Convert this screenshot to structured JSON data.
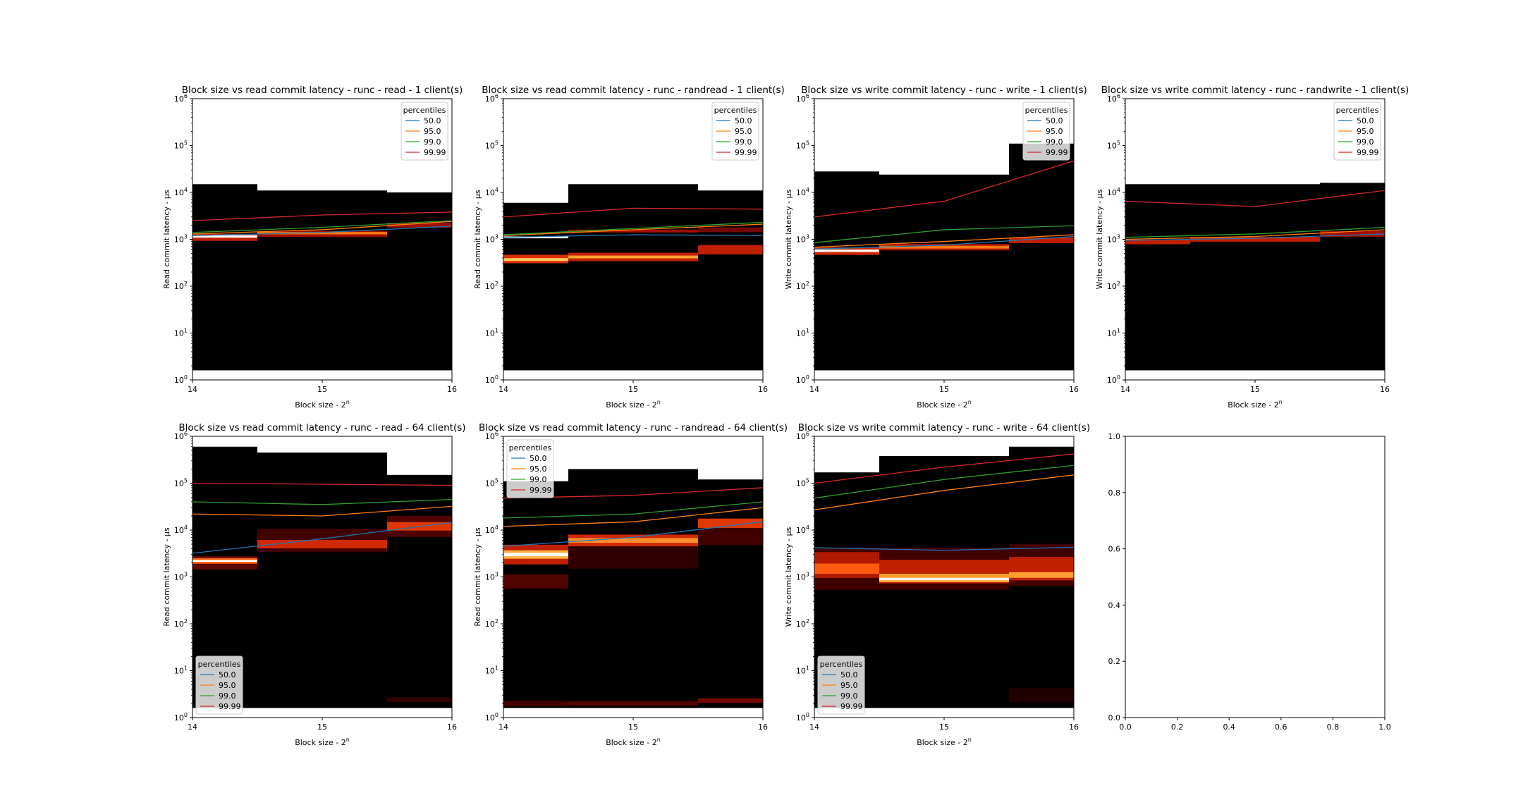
{
  "figure": {
    "background": "#ffffff"
  },
  "chart_data": [
    {
      "type": "heatmap",
      "title": "Block size vs read commit latency - runc - read - 1 client(s)",
      "xlabel": "Block size - 2^n",
      "ylabel": "Read commit latency - μs",
      "x_ticks": [
        "14",
        "15",
        "16"
      ],
      "xlim": [
        14,
        16
      ],
      "y_scale": "log",
      "ylim_exp": [
        0,
        6
      ],
      "legend_position": "upper right",
      "has_data": true,
      "bins": [
        {
          "x0": 14,
          "x1": 14.5,
          "top": 15000,
          "bands": [
            {
              "c": 1150,
              "w": 0.05,
              "col": "#ffffff"
            },
            {
              "c": 1100,
              "w": 0.15,
              "col": "#c02000"
            }
          ]
        },
        {
          "x0": 14.5,
          "x1": 15.5,
          "top": 11000,
          "bands": [
            {
              "c": 1350,
              "w": 0.05,
              "col": "#ff7a10"
            },
            {
              "c": 1300,
              "w": 0.13,
              "col": "#a01000"
            }
          ]
        },
        {
          "x0": 15.5,
          "x1": 16,
          "top": 10000,
          "bands": [
            {
              "c": 2000,
              "w": 0.1,
              "col": "#a01000"
            }
          ]
        }
      ],
      "series": [
        {
          "name": "50.0",
          "color": "#1f77b4",
          "x": [
            14,
            15,
            16
          ],
          "y": [
            1200,
            1400,
            1900
          ]
        },
        {
          "name": "95.0",
          "color": "#ff7f0e",
          "x": [
            14,
            15,
            16
          ],
          "y": [
            1300,
            1600,
            2400
          ]
        },
        {
          "name": "99.0",
          "color": "#2ca02c",
          "x": [
            14,
            15,
            16
          ],
          "y": [
            1400,
            1800,
            2500
          ]
        },
        {
          "name": "99.99",
          "color": "#d62728",
          "x": [
            14,
            15,
            16
          ],
          "y": [
            2500,
            3300,
            3800
          ]
        }
      ]
    },
    {
      "type": "heatmap",
      "title": "Block size vs read commit latency - runc - randread - 1 client(s)",
      "xlabel": "Block size - 2^n",
      "ylabel": "Read commit latency - μs",
      "x_ticks": [
        "14",
        "15",
        "16"
      ],
      "xlim": [
        14,
        16
      ],
      "y_scale": "log",
      "ylim_exp": [
        0,
        6
      ],
      "legend_position": "upper right",
      "has_data": true,
      "bins": [
        {
          "x0": 14,
          "x1": 14.5,
          "top": 6000,
          "bands": [
            {
              "c": 370,
              "w": 0.06,
              "col": "#ffd060"
            },
            {
              "c": 380,
              "w": 0.18,
              "col": "#e03000"
            },
            {
              "c": 1100,
              "w": 0.04,
              "col": "#ffffff"
            }
          ]
        },
        {
          "x0": 14.5,
          "x1": 15.5,
          "top": 15000,
          "bands": [
            {
              "c": 420,
              "w": 0.06,
              "col": "#ffa030"
            },
            {
              "c": 420,
              "w": 0.18,
              "col": "#c02000"
            },
            {
              "c": 1500,
              "w": 0.06,
              "col": "#a01000"
            }
          ]
        },
        {
          "x0": 15.5,
          "x1": 16,
          "top": 11000,
          "bands": [
            {
              "c": 600,
              "w": 0.2,
              "col": "#c02000"
            },
            {
              "c": 1600,
              "w": 0.1,
              "col": "#700800"
            }
          ]
        }
      ],
      "series": [
        {
          "name": "50.0",
          "color": "#1f77b4",
          "x": [
            14,
            15,
            16
          ],
          "y": [
            1100,
            1250,
            1200
          ]
        },
        {
          "name": "95.0",
          "color": "#ff7f0e",
          "x": [
            14,
            15,
            16
          ],
          "y": [
            1200,
            1600,
            2100
          ]
        },
        {
          "name": "99.0",
          "color": "#2ca02c",
          "x": [
            14,
            15,
            16
          ],
          "y": [
            1250,
            1700,
            2300
          ]
        },
        {
          "name": "99.99",
          "color": "#d62728",
          "x": [
            14,
            15,
            16
          ],
          "y": [
            3000,
            4600,
            4400
          ]
        }
      ]
    },
    {
      "type": "heatmap",
      "title": "Block size vs write commit latency - runc - write - 1 client(s)",
      "xlabel": "Block size - 2^n",
      "ylabel": "Write commit latency - μs",
      "x_ticks": [
        "14",
        "15",
        "16"
      ],
      "xlim": [
        14,
        16
      ],
      "y_scale": "log",
      "ylim_exp": [
        0,
        6
      ],
      "legend_position": "upper right",
      "has_data": true,
      "bins": [
        {
          "x0": 14,
          "x1": 14.5,
          "top": 28000,
          "bands": [
            {
              "c": 570,
              "w": 0.05,
              "col": "#ffffff"
            },
            {
              "c": 560,
              "w": 0.16,
              "col": "#d02800"
            }
          ]
        },
        {
          "x0": 14.5,
          "x1": 15.5,
          "top": 24000,
          "bands": [
            {
              "c": 680,
              "w": 0.06,
              "col": "#ff7a10"
            },
            {
              "c": 680,
              "w": 0.14,
              "col": "#a01000"
            }
          ]
        },
        {
          "x0": 15.5,
          "x1": 16,
          "top": 110000,
          "bands": [
            {
              "c": 950,
              "w": 0.12,
              "col": "#c02000"
            }
          ]
        }
      ],
      "series": [
        {
          "name": "50.0",
          "color": "#1f77b4",
          "x": [
            14,
            15,
            16
          ],
          "y": [
            620,
            750,
            1150
          ]
        },
        {
          "name": "95.0",
          "color": "#ff7f0e",
          "x": [
            14,
            15,
            16
          ],
          "y": [
            680,
            900,
            1250
          ]
        },
        {
          "name": "99.0",
          "color": "#2ca02c",
          "x": [
            14,
            15,
            16
          ],
          "y": [
            850,
            1600,
            1950
          ]
        },
        {
          "name": "99.99",
          "color": "#d62728",
          "x": [
            14,
            15,
            16
          ],
          "y": [
            3000,
            6500,
            47000
          ]
        }
      ]
    },
    {
      "type": "heatmap",
      "title": "Block size vs write commit latency - runc - randwrite - 1 client(s)",
      "xlabel": "Block size - 2^n",
      "ylabel": "Write commit latency - μs",
      "x_ticks": [
        "14",
        "15",
        "16"
      ],
      "xlim": [
        14,
        16
      ],
      "y_scale": "log",
      "ylim_exp": [
        0,
        6
      ],
      "legend_position": "upper right",
      "has_data": true,
      "bins": [
        {
          "x0": 14,
          "x1": 14.5,
          "top": 15000,
          "bands": [
            {
              "c": 880,
              "w": 0.1,
              "col": "#c02000"
            }
          ]
        },
        {
          "x0": 14.5,
          "x1": 15.5,
          "top": 15000,
          "bands": [
            {
              "c": 1000,
              "w": 0.1,
              "col": "#c02000"
            }
          ]
        },
        {
          "x0": 15.5,
          "x1": 16,
          "top": 16000,
          "bands": [
            {
              "c": 1300,
              "w": 0.12,
              "col": "#a01000"
            }
          ]
        }
      ],
      "series": [
        {
          "name": "50.0",
          "color": "#1f77b4",
          "x": [
            14,
            15,
            16
          ],
          "y": [
            950,
            1050,
            1300
          ]
        },
        {
          "name": "95.0",
          "color": "#ff7f0e",
          "x": [
            14,
            15,
            16
          ],
          "y": [
            1000,
            1150,
            1600
          ]
        },
        {
          "name": "99.0",
          "color": "#2ca02c",
          "x": [
            14,
            15,
            16
          ],
          "y": [
            1100,
            1300,
            1800
          ]
        },
        {
          "name": "99.99",
          "color": "#d62728",
          "x": [
            14,
            15,
            16
          ],
          "y": [
            6500,
            5000,
            11000
          ]
        }
      ]
    },
    {
      "type": "heatmap",
      "title": "Block size vs read commit latency - runc - read - 64 client(s)",
      "xlabel": "Block size - 2^n",
      "ylabel": "Read commit latency - μs",
      "x_ticks": [
        "14",
        "15",
        "16"
      ],
      "xlim": [
        14,
        16
      ],
      "y_scale": "log",
      "ylim_exp": [
        0,
        6
      ],
      "legend_position": "lower left",
      "has_data": true,
      "bins": [
        {
          "x0": 14,
          "x1": 14.5,
          "top": 600000,
          "bands": [
            {
              "c": 2200,
              "w": 0.04,
              "col": "#ffffff"
            },
            {
              "c": 2200,
              "w": 0.12,
              "col": "#ff6010"
            },
            {
              "c": 2000,
              "w": 0.28,
              "col": "#600800"
            }
          ]
        },
        {
          "x0": 14.5,
          "x1": 15.5,
          "top": 450000,
          "bands": [
            {
              "c": 5000,
              "w": 0.18,
              "col": "#d02800"
            },
            {
              "c": 6000,
              "w": 0.5,
              "col": "#400000"
            }
          ]
        },
        {
          "x0": 15.5,
          "x1": 16,
          "top": 150000,
          "bands": [
            {
              "c": 12000,
              "w": 0.18,
              "col": "#e03800"
            },
            {
              "c": 12000,
              "w": 0.45,
              "col": "#500400"
            },
            {
              "c": 2.4,
              "w": 0.1,
              "col": "#300000"
            }
          ]
        }
      ],
      "series": [
        {
          "name": "50.0",
          "color": "#1f77b4",
          "x": [
            14,
            15,
            16
          ],
          "y": [
            3200,
            6500,
            14500
          ]
        },
        {
          "name": "95.0",
          "color": "#ff7f0e",
          "x": [
            14,
            15,
            16
          ],
          "y": [
            22000,
            20000,
            32000
          ]
        },
        {
          "name": "99.0",
          "color": "#2ca02c",
          "x": [
            14,
            15,
            16
          ],
          "y": [
            40000,
            35000,
            45000
          ]
        },
        {
          "name": "99.99",
          "color": "#d62728",
          "x": [
            14,
            15,
            16
          ],
          "y": [
            100000,
            95000,
            90000
          ]
        }
      ]
    },
    {
      "type": "heatmap",
      "title": "Block size vs read commit latency - runc - randread - 64 client(s)",
      "xlabel": "Block size - 2^n",
      "ylabel": "Read commit latency - μs",
      "x_ticks": [
        "14",
        "15",
        "16"
      ],
      "xlim": [
        14,
        16
      ],
      "y_scale": "log",
      "ylim_exp": [
        0,
        6
      ],
      "legend_position": "upper left",
      "has_data": true,
      "bins": [
        {
          "x0": 14,
          "x1": 14.5,
          "top": 110000,
          "bands": [
            {
              "c": 3000,
              "w": 0.07,
              "col": "#ffffff"
            },
            {
              "c": 3000,
              "w": 0.18,
              "col": "#ffb040"
            },
            {
              "c": 3000,
              "w": 0.42,
              "col": "#c02000"
            },
            {
              "c": 800,
              "w": 0.3,
              "col": "#500400"
            },
            {
              "c": 2,
              "w": 0.12,
              "col": "#400000"
            }
          ]
        },
        {
          "x0": 14.5,
          "x1": 15.5,
          "top": 200000,
          "bands": [
            {
              "c": 6000,
              "w": 0.1,
              "col": "#ff9030"
            },
            {
              "c": 6000,
              "w": 0.25,
              "col": "#d02800"
            },
            {
              "c": 3000,
              "w": 0.6,
              "col": "#300000"
            },
            {
              "c": 2,
              "w": 0.1,
              "col": "#500400"
            }
          ]
        },
        {
          "x0": 15.5,
          "x1": 16,
          "top": 120000,
          "bands": [
            {
              "c": 14000,
              "w": 0.2,
              "col": "#e03800"
            },
            {
              "c": 9000,
              "w": 0.55,
              "col": "#400000"
            },
            {
              "c": 2.3,
              "w": 0.1,
              "col": "#700800"
            }
          ]
        }
      ],
      "series": [
        {
          "name": "50.0",
          "color": "#1f77b4",
          "x": [
            14,
            15,
            16
          ],
          "y": [
            4500,
            7000,
            15000
          ]
        },
        {
          "name": "95.0",
          "color": "#ff7f0e",
          "x": [
            14,
            15,
            16
          ],
          "y": [
            12000,
            15000,
            30000
          ]
        },
        {
          "name": "99.0",
          "color": "#2ca02c",
          "x": [
            14,
            15,
            16
          ],
          "y": [
            18000,
            22000,
            40000
          ]
        },
        {
          "name": "99.99",
          "color": "#d62728",
          "x": [
            14,
            15,
            16
          ],
          "y": [
            48000,
            55000,
            80000
          ]
        }
      ]
    },
    {
      "type": "heatmap",
      "title": "Block size vs write commit latency - runc - write - 64 client(s)",
      "xlabel": "Block size - 2^n",
      "ylabel": "Write commit latency - μs",
      "x_ticks": [
        "14",
        "15",
        "16"
      ],
      "xlim": [
        14,
        16
      ],
      "y_scale": "log",
      "ylim_exp": [
        0,
        6
      ],
      "legend_position": "lower left",
      "has_data": true,
      "bins": [
        {
          "x0": 14,
          "x1": 14.5,
          "top": 170000,
          "bands": [
            {
              "c": 1500,
              "w": 0.22,
              "col": "#ff5a10"
            },
            {
              "c": 1800,
              "w": 0.55,
              "col": "#b01800"
            },
            {
              "c": 1500,
              "w": 0.9,
              "col": "#400000"
            }
          ]
        },
        {
          "x0": 14.5,
          "x1": 15.5,
          "top": 380000,
          "bands": [
            {
              "c": 900,
              "w": 0.05,
              "col": "#ffffff"
            },
            {
              "c": 950,
              "w": 0.18,
              "col": "#ffa030"
            },
            {
              "c": 1300,
              "w": 0.5,
              "col": "#c02000"
            },
            {
              "c": 1500,
              "w": 0.9,
              "col": "#400000"
            }
          ]
        },
        {
          "x0": 15.5,
          "x1": 16,
          "top": 600000,
          "bands": [
            {
              "c": 1100,
              "w": 0.12,
              "col": "#ffa030"
            },
            {
              "c": 1500,
              "w": 0.5,
              "col": "#c02000"
            },
            {
              "c": 1800,
              "w": 0.9,
              "col": "#400000"
            },
            {
              "c": 3,
              "w": 0.3,
              "col": "#200000"
            }
          ]
        }
      ],
      "series": [
        {
          "name": "50.0",
          "color": "#1f77b4",
          "x": [
            14,
            15,
            16
          ],
          "y": [
            4200,
            3700,
            4300
          ]
        },
        {
          "name": "95.0",
          "color": "#ff7f0e",
          "x": [
            14,
            15,
            16
          ],
          "y": [
            27000,
            70000,
            150000
          ]
        },
        {
          "name": "99.0",
          "color": "#2ca02c",
          "x": [
            14,
            15,
            16
          ],
          "y": [
            48000,
            120000,
            240000
          ]
        },
        {
          "name": "99.99",
          "color": "#d62728",
          "x": [
            14,
            15,
            16
          ],
          "y": [
            100000,
            220000,
            420000
          ]
        }
      ]
    },
    {
      "type": "line",
      "title": "",
      "xlabel": "",
      "ylabel": "",
      "x_ticks": [
        "0.0",
        "0.2",
        "0.4",
        "0.6",
        "0.8",
        "1.0"
      ],
      "y_ticks": [
        "0.0",
        "0.2",
        "0.4",
        "0.6",
        "0.8",
        "1.0"
      ],
      "xlim": [
        0,
        1
      ],
      "ylim": [
        0,
        1
      ],
      "has_data": false
    }
  ],
  "legend": {
    "title": "percentiles"
  }
}
